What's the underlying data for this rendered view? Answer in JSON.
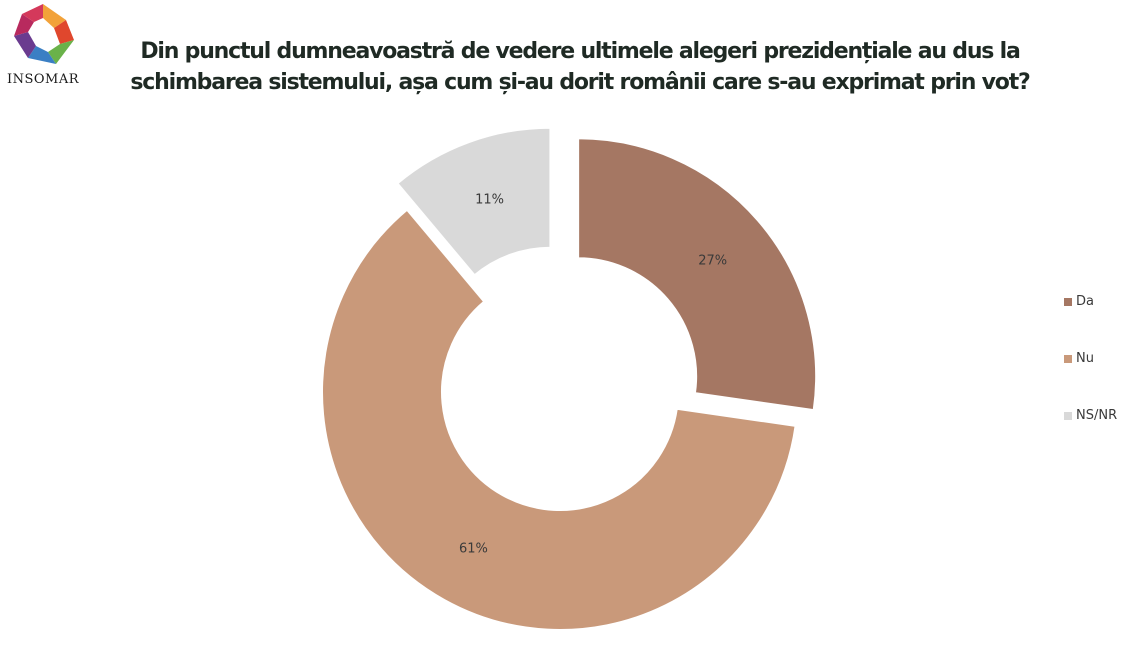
{
  "logo": {
    "text": "INSOMAR"
  },
  "title": "Din punctul dumneavoastră de vedere ultimele alegeri prezidențiale au dus la schimbarea sistemului, așa cum și-au dorit românii care s-au exprimat prin vot?",
  "chart_data": {
    "type": "pie",
    "variant": "donut",
    "title": "Din punctul dumneavoastră de vedere ultimele alegeri prezidențiale au dus la schimbarea sistemului, așa cum și-au dorit românii care s-au exprimat prin vot?",
    "categories": [
      "Da",
      "Nu",
      "NS/NR"
    ],
    "values": [
      27,
      61,
      11
    ],
    "labels": [
      "27%",
      "61%",
      "11%"
    ],
    "colors": [
      "#a57763",
      "#c9997a",
      "#d9d9d9"
    ],
    "exploded": true,
    "legend_position": "right"
  }
}
